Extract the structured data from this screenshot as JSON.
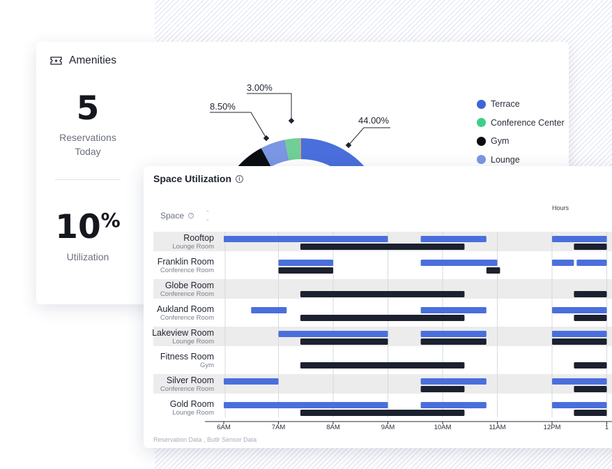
{
  "amenities": {
    "title": "Amenities",
    "stats": [
      {
        "value": "5",
        "label": "Reservations Today"
      },
      {
        "value": "10",
        "suffix": "%",
        "label": "Utilization"
      }
    ],
    "donut": {
      "slices": [
        {
          "label": "44.00%",
          "color": "#4a6fdc"
        },
        {
          "label": "8.50%",
          "color": "#7b96e3"
        },
        {
          "label": "3.00%",
          "color": "#6fcf97"
        }
      ]
    },
    "legend": [
      {
        "label": "Terrace",
        "color": "#3f65d8"
      },
      {
        "label": "Conference Center",
        "color": "#3ecf86"
      },
      {
        "label": "Gym",
        "color": "#0b0d12"
      },
      {
        "label": "Lounge",
        "color": "#7b96e3"
      }
    ]
  },
  "space_utilization": {
    "title": "Space Utilization",
    "column_header": "Space",
    "hours_label": "Hours",
    "footer": "Reservation Data , Butlr Sensor Data",
    "colors": {
      "reservation": "#4a6fdc",
      "sensor": "#1c2130",
      "stripe": "#ececec"
    },
    "ticks": [
      "6AM",
      "7AM",
      "8AM",
      "9AM",
      "10AM",
      "11AM",
      "12PM",
      "1"
    ],
    "rows": [
      {
        "name": "Rooftop",
        "type": "Lounge Room",
        "reservations": [
          [
            6.0,
            9.0
          ],
          [
            9.6,
            10.8
          ],
          [
            12.0,
            13.0
          ]
        ],
        "sensor": [
          [
            7.4,
            10.4
          ],
          [
            12.4,
            13.0
          ]
        ]
      },
      {
        "name": "Franklin Room",
        "type": "Conference Room",
        "reservations": [
          [
            7.0,
            8.0
          ],
          [
            9.6,
            11.0
          ],
          [
            12.0,
            12.4
          ],
          [
            12.45,
            13.0
          ]
        ],
        "sensor": [
          [
            7.0,
            8.0
          ],
          [
            10.8,
            11.05
          ]
        ]
      },
      {
        "name": "Globe Room",
        "type": "Conference Room",
        "reservations": [],
        "sensor": [
          [
            7.4,
            10.4
          ],
          [
            12.4,
            13.0
          ]
        ]
      },
      {
        "name": "Aukland Room",
        "type": "Conference Room",
        "reservations": [
          [
            6.5,
            7.15
          ],
          [
            9.6,
            10.8
          ],
          [
            12.0,
            13.0
          ]
        ],
        "sensor": [
          [
            7.4,
            10.4
          ],
          [
            12.4,
            13.0
          ]
        ]
      },
      {
        "name": "Lakeview Room",
        "type": "Lounge Room",
        "reservations": [
          [
            7.0,
            9.0
          ],
          [
            9.6,
            10.8
          ],
          [
            12.0,
            13.0
          ]
        ],
        "sensor": [
          [
            7.4,
            9.0
          ],
          [
            9.6,
            10.8
          ],
          [
            12.0,
            13.0
          ]
        ]
      },
      {
        "name": "Fitness Room",
        "type": "Gym",
        "reservations": [],
        "sensor": [
          [
            7.4,
            10.4
          ],
          [
            12.4,
            13.0
          ]
        ]
      },
      {
        "name": "Silver Room",
        "type": "Conference Room",
        "reservations": [
          [
            6.0,
            7.0
          ],
          [
            9.6,
            10.8
          ],
          [
            12.0,
            13.0
          ]
        ],
        "sensor": [
          [
            9.6,
            10.4
          ],
          [
            12.4,
            13.0
          ]
        ]
      },
      {
        "name": "Gold Room",
        "type": "Lounge Room",
        "reservations": [
          [
            6.0,
            9.0
          ],
          [
            9.6,
            10.8
          ],
          [
            12.0,
            13.0
          ]
        ],
        "sensor": [
          [
            7.4,
            10.4
          ],
          [
            12.4,
            13.0
          ]
        ]
      }
    ]
  }
}
